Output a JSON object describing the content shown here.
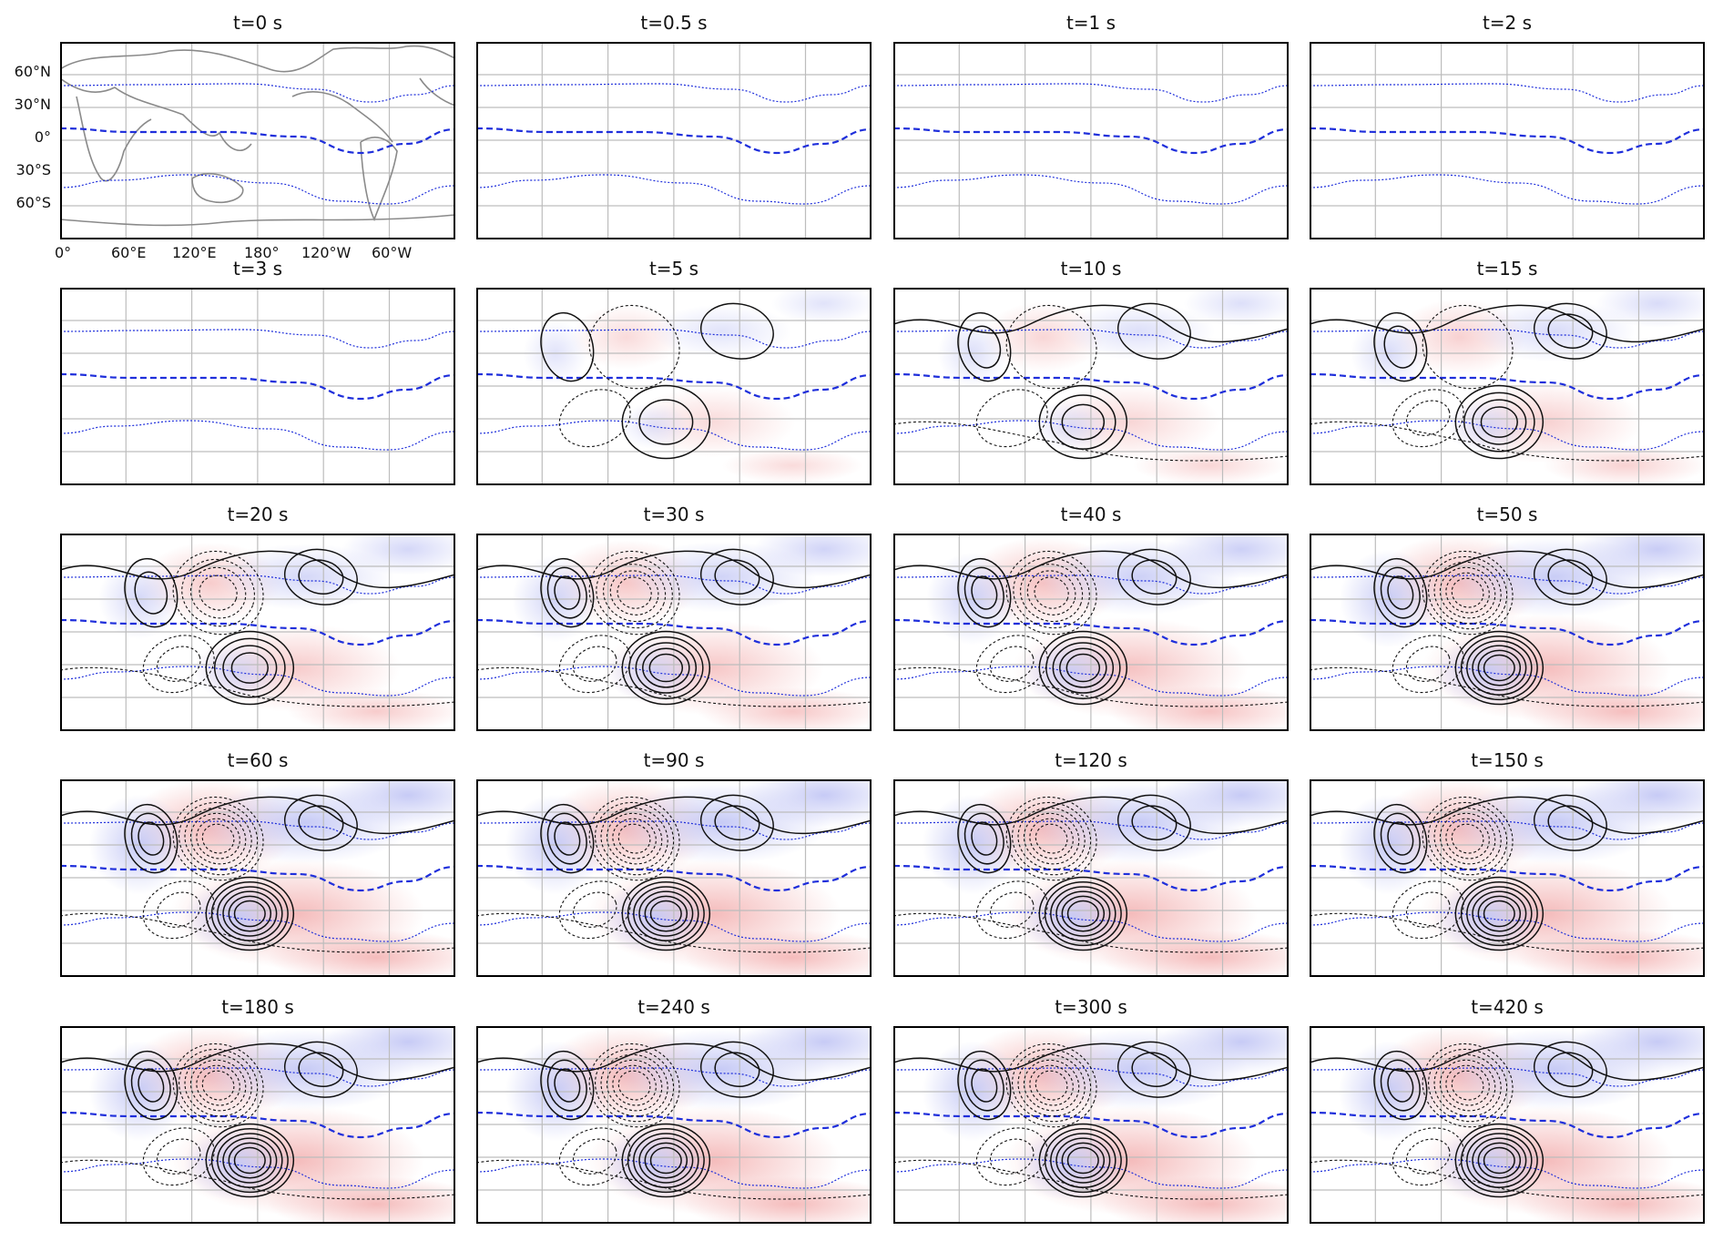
{
  "panels": [
    {
      "title": "t=0 s"
    },
    {
      "title": "t=0.5 s"
    },
    {
      "title": "t=1 s"
    },
    {
      "title": "t=2 s"
    },
    {
      "title": "t=3 s"
    },
    {
      "title": "t=5 s"
    },
    {
      "title": "t=10 s"
    },
    {
      "title": "t=15 s"
    },
    {
      "title": "t=20 s"
    },
    {
      "title": "t=30 s"
    },
    {
      "title": "t=40 s"
    },
    {
      "title": "t=50 s"
    },
    {
      "title": "t=60 s"
    },
    {
      "title": "t=90 s"
    },
    {
      "title": "t=120 s"
    },
    {
      "title": "t=150 s"
    },
    {
      "title": "t=180 s"
    },
    {
      "title": "t=240 s"
    },
    {
      "title": "t=300 s"
    },
    {
      "title": "t=420 s"
    }
  ],
  "axes": {
    "lat_ticks": [
      "60°N",
      "30°N",
      "0°",
      "30°S",
      "60°S"
    ],
    "lon_ticks": [
      "0°",
      "60°E",
      "120°E",
      "180°",
      "120°W",
      "60°W"
    ]
  },
  "colors": {
    "positive_shading": "#f4b8b8",
    "negative_shading": "#c4c8f5",
    "jet_line": "#1f2fdb",
    "contour": "#111111",
    "grid": "#bdbdbd",
    "coastline": "#8a8a8a"
  }
}
